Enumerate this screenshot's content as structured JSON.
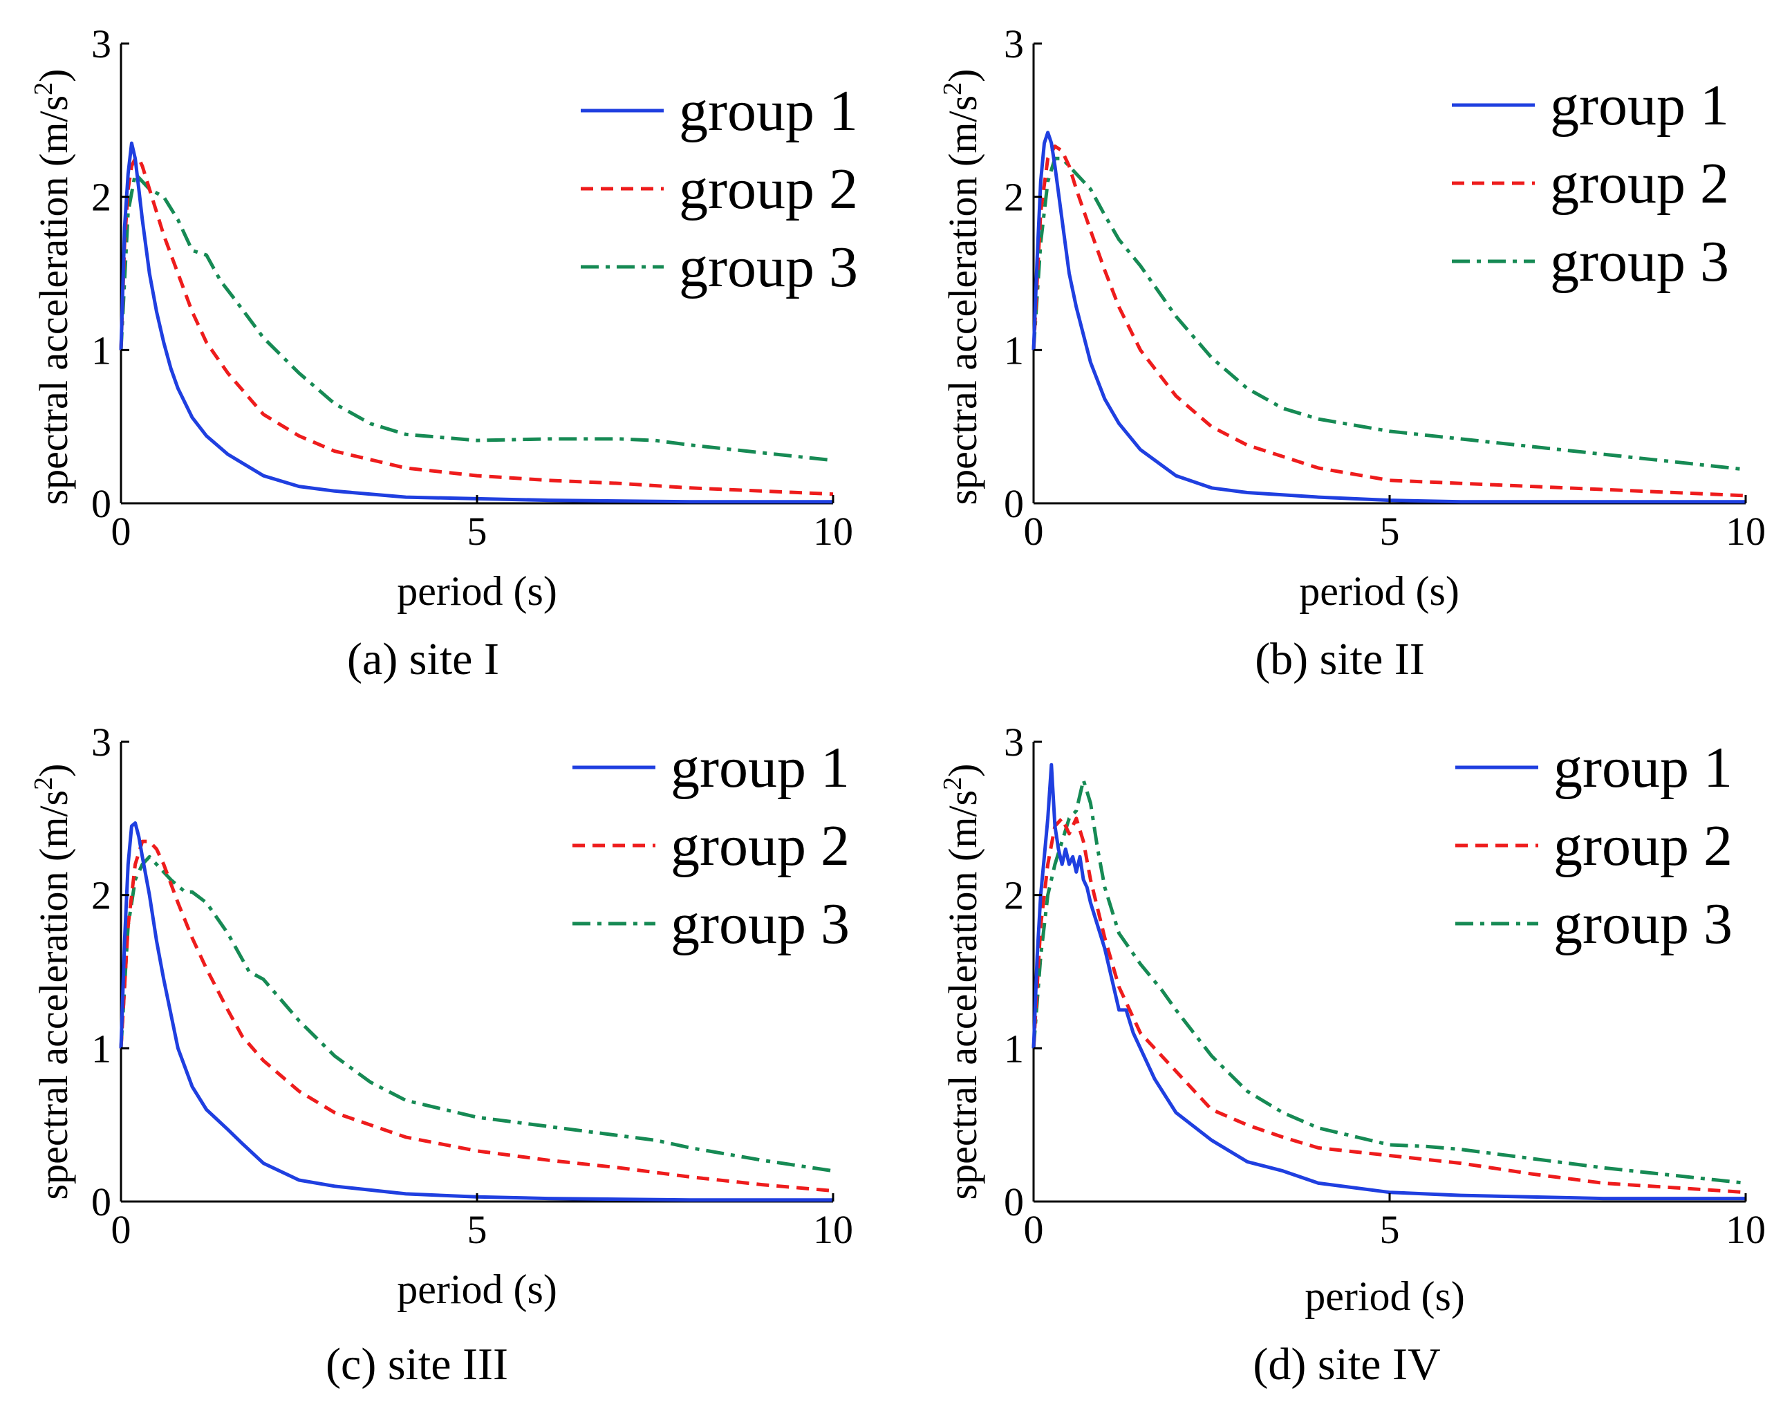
{
  "colors": {
    "group1": "#1f3fe0",
    "group2": "#ee1c1c",
    "group3": "#168a54"
  },
  "chart_data": [
    {
      "type": "line",
      "caption": "(a) site I",
      "xlabel": "period (s)",
      "ylabel": "spectral acceleration (m/s²)",
      "ylabel_main": "spectral acceleration (m/s",
      "ylabel_sup": "2",
      "ylabel_end": ")",
      "xlim": [
        0,
        10
      ],
      "ylim": [
        0,
        3
      ],
      "xticks": [
        0,
        5,
        10
      ],
      "yticks": [
        0,
        1,
        2,
        3
      ],
      "legend_position": "top-right",
      "series": [
        {
          "name": "group 1",
          "style": "solid",
          "x": [
            0,
            0.05,
            0.1,
            0.15,
            0.2,
            0.25,
            0.3,
            0.4,
            0.5,
            0.6,
            0.7,
            0.8,
            1.0,
            1.2,
            1.5,
            2.0,
            2.5,
            3.0,
            4.0,
            5.0,
            6.0,
            8.0,
            10.0
          ],
          "y": [
            1.0,
            1.8,
            2.15,
            2.35,
            2.25,
            2.05,
            1.85,
            1.5,
            1.25,
            1.05,
            0.88,
            0.75,
            0.56,
            0.44,
            0.32,
            0.18,
            0.11,
            0.08,
            0.04,
            0.03,
            0.02,
            0.01,
            0.01
          ]
        },
        {
          "name": "group 2",
          "style": "dashed",
          "x": [
            0,
            0.05,
            0.1,
            0.15,
            0.2,
            0.25,
            0.3,
            0.4,
            0.5,
            0.6,
            0.8,
            1.0,
            1.2,
            1.5,
            2.0,
            2.5,
            3.0,
            4.0,
            5.0,
            6.0,
            7.0,
            8.0,
            9.0,
            10.0
          ],
          "y": [
            1.0,
            1.7,
            2.05,
            2.2,
            2.25,
            2.25,
            2.2,
            2.05,
            1.9,
            1.75,
            1.5,
            1.25,
            1.05,
            0.85,
            0.58,
            0.44,
            0.34,
            0.23,
            0.18,
            0.15,
            0.13,
            0.1,
            0.08,
            0.06
          ]
        },
        {
          "name": "group 3",
          "style": "dashdot",
          "x": [
            0,
            0.1,
            0.2,
            0.3,
            0.4,
            0.6,
            0.8,
            1.0,
            1.2,
            1.4,
            1.6,
            2.0,
            2.5,
            3.0,
            3.5,
            4.0,
            5.0,
            6.0,
            7.0,
            7.5,
            8.0,
            9.0,
            10.0
          ],
          "y": [
            1.0,
            1.9,
            2.15,
            2.1,
            2.05,
            2.0,
            1.85,
            1.65,
            1.62,
            1.45,
            1.33,
            1.08,
            0.85,
            0.65,
            0.52,
            0.45,
            0.41,
            0.42,
            0.42,
            0.41,
            0.38,
            0.33,
            0.28
          ]
        }
      ]
    },
    {
      "type": "line",
      "caption": "(b) site II",
      "xlabel": "period (s)",
      "ylabel": "spectral acceleration (m/s²)",
      "ylabel_main": "spectral acceleration (m/s",
      "ylabel_sup": "2",
      "ylabel_end": ")",
      "xlim": [
        0,
        10
      ],
      "ylim": [
        0,
        3
      ],
      "xticks": [
        0,
        5,
        10
      ],
      "yticks": [
        0,
        1,
        2,
        3
      ],
      "legend_position": "top-right",
      "series": [
        {
          "name": "group 1",
          "style": "solid",
          "x": [
            0,
            0.05,
            0.1,
            0.15,
            0.2,
            0.25,
            0.3,
            0.4,
            0.5,
            0.6,
            0.8,
            1.0,
            1.2,
            1.5,
            2.0,
            2.5,
            3.0,
            4.0,
            5.0,
            6.0,
            8.0,
            10.0
          ],
          "y": [
            1.0,
            1.6,
            2.1,
            2.35,
            2.42,
            2.35,
            2.2,
            1.85,
            1.5,
            1.28,
            0.92,
            0.68,
            0.52,
            0.35,
            0.18,
            0.1,
            0.07,
            0.04,
            0.02,
            0.01,
            0.01,
            0.01
          ]
        },
        {
          "name": "group 2",
          "style": "dashed",
          "x": [
            0,
            0.1,
            0.2,
            0.3,
            0.4,
            0.5,
            0.6,
            0.8,
            1.0,
            1.2,
            1.5,
            2.0,
            2.5,
            3.0,
            4.0,
            5.0,
            6.0,
            7.0,
            8.0,
            9.0,
            10.0
          ],
          "y": [
            1.0,
            1.9,
            2.25,
            2.33,
            2.3,
            2.2,
            2.05,
            1.78,
            1.52,
            1.28,
            1.0,
            0.7,
            0.5,
            0.38,
            0.23,
            0.15,
            0.13,
            0.11,
            0.09,
            0.07,
            0.05
          ]
        },
        {
          "name": "group 3",
          "style": "dashdot",
          "x": [
            0,
            0.1,
            0.2,
            0.3,
            0.4,
            0.5,
            0.6,
            0.8,
            1.0,
            1.2,
            1.5,
            2.0,
            2.5,
            3.0,
            3.5,
            4.0,
            5.0,
            6.0,
            7.0,
            8.0,
            9.0,
            10.0
          ],
          "y": [
            1.0,
            1.7,
            2.1,
            2.25,
            2.25,
            2.2,
            2.15,
            2.05,
            1.88,
            1.72,
            1.55,
            1.22,
            0.95,
            0.75,
            0.62,
            0.55,
            0.47,
            0.42,
            0.37,
            0.32,
            0.27,
            0.22
          ]
        }
      ]
    },
    {
      "type": "line",
      "caption": "(c) site III",
      "xlabel": "period (s)",
      "ylabel": "spectral acceleration (m/s²)",
      "ylabel_main": "spectral acceleration (m/s",
      "ylabel_sup": "2",
      "ylabel_end": ")",
      "xlim": [
        0,
        10
      ],
      "ylim": [
        0,
        3
      ],
      "xticks": [
        0,
        5,
        10
      ],
      "yticks": [
        0,
        1,
        2,
        3
      ],
      "legend_position": "top-right",
      "series": [
        {
          "name": "group 1",
          "style": "solid",
          "x": [
            0,
            0.05,
            0.1,
            0.15,
            0.2,
            0.25,
            0.3,
            0.4,
            0.5,
            0.6,
            0.8,
            1.0,
            1.2,
            1.5,
            1.7,
            2.0,
            2.5,
            3.0,
            4.0,
            5.0,
            6.0,
            8.0,
            10.0
          ],
          "y": [
            1.0,
            1.7,
            2.2,
            2.45,
            2.47,
            2.38,
            2.25,
            2.0,
            1.7,
            1.45,
            1.0,
            0.75,
            0.6,
            0.47,
            0.38,
            0.25,
            0.14,
            0.1,
            0.05,
            0.03,
            0.02,
            0.01,
            0.01
          ]
        },
        {
          "name": "group 2",
          "style": "dashed",
          "x": [
            0,
            0.1,
            0.2,
            0.3,
            0.4,
            0.5,
            0.6,
            0.8,
            1.0,
            1.2,
            1.5,
            1.7,
            2.0,
            2.5,
            3.0,
            4.0,
            5.0,
            6.0,
            7.0,
            8.0,
            9.0,
            10.0
          ],
          "y": [
            1.0,
            1.8,
            2.2,
            2.35,
            2.35,
            2.3,
            2.2,
            1.95,
            1.72,
            1.52,
            1.25,
            1.08,
            0.92,
            0.72,
            0.58,
            0.42,
            0.33,
            0.27,
            0.22,
            0.16,
            0.11,
            0.07
          ]
        },
        {
          "name": "group 3",
          "style": "dashdot",
          "x": [
            0,
            0.1,
            0.2,
            0.3,
            0.4,
            0.5,
            0.7,
            0.9,
            1.0,
            1.2,
            1.5,
            1.8,
            2.0,
            2.5,
            3.0,
            3.5,
            4.0,
            5.0,
            6.0,
            7.0,
            7.5,
            8.0,
            9.0,
            10.0
          ],
          "y": [
            1.0,
            1.8,
            2.1,
            2.2,
            2.25,
            2.2,
            2.1,
            2.02,
            2.02,
            1.95,
            1.75,
            1.5,
            1.45,
            1.18,
            0.95,
            0.78,
            0.66,
            0.55,
            0.49,
            0.43,
            0.4,
            0.35,
            0.27,
            0.2
          ]
        }
      ]
    },
    {
      "type": "line",
      "caption": "(d) site IV",
      "xlabel": "period (s)",
      "ylabel": "spectral acceleration (m/s²)",
      "ylabel_main": "spectral acceleration (m/s",
      "ylabel_sup": "2",
      "ylabel_end": ")",
      "xlim": [
        0,
        10
      ],
      "ylim": [
        0,
        3
      ],
      "xticks": [
        0,
        5,
        10
      ],
      "yticks": [
        0,
        1,
        2,
        3
      ],
      "legend_position": "top-right",
      "series": [
        {
          "name": "group 1",
          "style": "solid",
          "x": [
            0,
            0.05,
            0.1,
            0.15,
            0.2,
            0.25,
            0.3,
            0.35,
            0.4,
            0.45,
            0.5,
            0.55,
            0.6,
            0.65,
            0.7,
            0.75,
            0.8,
            0.9,
            1.0,
            1.1,
            1.2,
            1.3,
            1.4,
            1.5,
            1.7,
            2.0,
            2.5,
            3.0,
            3.5,
            4.0,
            5.0,
            6.0,
            8.0,
            10.0
          ],
          "y": [
            1.0,
            1.6,
            2.0,
            2.25,
            2.5,
            2.85,
            2.45,
            2.3,
            2.2,
            2.3,
            2.2,
            2.25,
            2.15,
            2.25,
            2.1,
            2.05,
            1.95,
            1.8,
            1.65,
            1.45,
            1.25,
            1.25,
            1.1,
            1.0,
            0.8,
            0.58,
            0.4,
            0.26,
            0.2,
            0.12,
            0.06,
            0.04,
            0.02,
            0.02
          ]
        },
        {
          "name": "group 2",
          "style": "dashed",
          "x": [
            0,
            0.1,
            0.2,
            0.3,
            0.4,
            0.5,
            0.6,
            0.7,
            0.8,
            1.0,
            1.2,
            1.5,
            1.8,
            2.0,
            2.5,
            3.0,
            3.5,
            4.0,
            5.0,
            6.0,
            7.0,
            8.0,
            9.0,
            10.0
          ],
          "y": [
            1.0,
            1.8,
            2.2,
            2.45,
            2.5,
            2.4,
            2.5,
            2.35,
            2.1,
            1.72,
            1.4,
            1.1,
            0.95,
            0.85,
            0.6,
            0.5,
            0.42,
            0.35,
            0.3,
            0.25,
            0.18,
            0.12,
            0.09,
            0.06
          ]
        },
        {
          "name": "group 3",
          "style": "dashdot",
          "x": [
            0,
            0.1,
            0.2,
            0.3,
            0.4,
            0.5,
            0.6,
            0.7,
            0.8,
            0.9,
            1.0,
            1.2,
            1.5,
            1.8,
            2.0,
            2.5,
            3.0,
            3.5,
            4.0,
            5.0,
            5.5,
            6.0,
            7.0,
            8.0,
            9.0,
            10.0
          ],
          "y": [
            1.0,
            1.6,
            2.0,
            2.2,
            2.35,
            2.5,
            2.55,
            2.75,
            2.6,
            2.3,
            2.05,
            1.75,
            1.55,
            1.38,
            1.25,
            0.95,
            0.72,
            0.58,
            0.48,
            0.37,
            0.36,
            0.34,
            0.28,
            0.22,
            0.17,
            0.12
          ]
        }
      ]
    }
  ]
}
